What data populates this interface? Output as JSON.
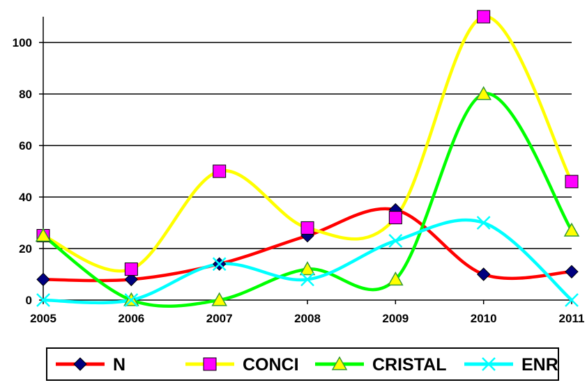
{
  "chart_data": {
    "type": "line",
    "title": "",
    "xlabel": "",
    "ylabel": "",
    "x": [
      "2005",
      "2006",
      "2007",
      "2008",
      "2009",
      "2010",
      "2011"
    ],
    "ylim": [
      0,
      110
    ],
    "yticks": [
      0,
      20,
      40,
      60,
      80,
      100
    ],
    "grid": true,
    "smooth": true,
    "legend_position": "bottom",
    "series": [
      {
        "name": "N",
        "values": [
          8,
          8,
          14,
          25,
          35,
          10,
          11
        ],
        "color": "#FF0000",
        "marker": "diamond",
        "marker_color": "#000080"
      },
      {
        "name": "CONCI",
        "values": [
          25,
          12,
          50,
          28,
          32,
          110,
          46
        ],
        "color": "#FFFF00",
        "marker": "square",
        "marker_color": "#FF00FF"
      },
      {
        "name": "CRISTAL",
        "values": [
          25,
          0,
          0,
          12,
          8,
          80,
          27
        ],
        "color": "#00FF00",
        "marker": "triangle",
        "marker_color": "#FFFF00"
      },
      {
        "name": "ENRIQ",
        "values": [
          0,
          0,
          14,
          8,
          23,
          30,
          0
        ],
        "color": "#00FFFF",
        "marker": "x",
        "marker_color": "#00FFFF"
      }
    ]
  }
}
